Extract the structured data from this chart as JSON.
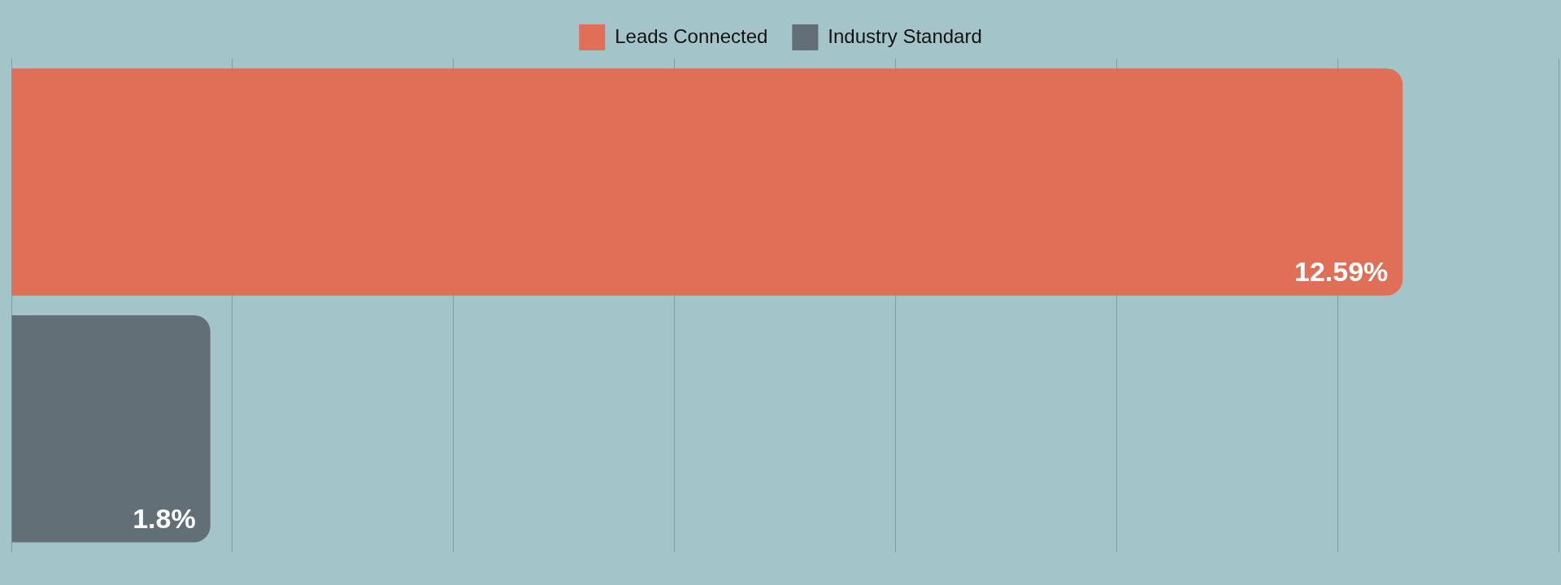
{
  "chart_data": {
    "type": "bar",
    "orientation": "horizontal",
    "categories": [
      null,
      null
    ],
    "series": [
      {
        "name": "Leads Connected",
        "color": "#e06f58",
        "values": [
          12.59,
          null
        ],
        "value_labels": [
          "12.59%",
          null
        ]
      },
      {
        "name": "Industry Standard",
        "color": "#636f77",
        "values": [
          null,
          1.8
        ],
        "value_labels": [
          null,
          "1.8%"
        ]
      }
    ],
    "xlim": [
      0,
      14
    ],
    "xticks": [
      {
        "value": 0,
        "label": null
      },
      {
        "value": 2,
        "label": null
      },
      {
        "value": 4,
        "label": null
      },
      {
        "value": 6,
        "label": null
      },
      {
        "value": 8,
        "label": null
      },
      {
        "value": 10,
        "label": null
      },
      {
        "value": 12,
        "label": null
      },
      {
        "value": 14,
        "label": null
      }
    ],
    "stacked": true,
    "grid": "x",
    "legend": "top"
  }
}
